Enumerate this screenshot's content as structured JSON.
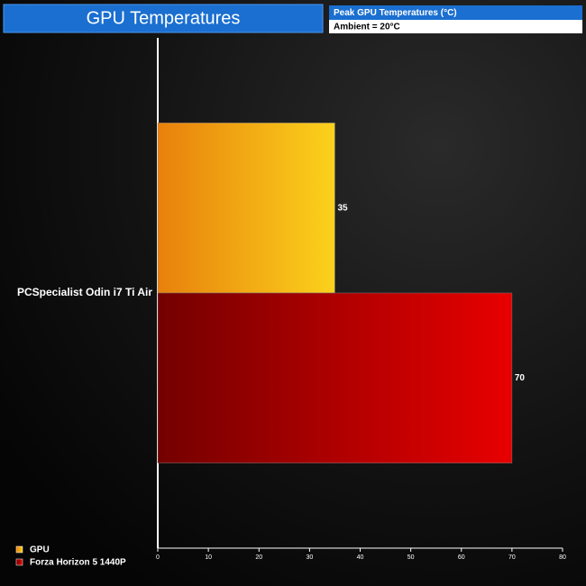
{
  "chart_data": {
    "type": "bar",
    "orientation": "horizontal",
    "title": "GPU Temperatures",
    "subtitle": "Peak GPU Temperatures (°C)",
    "annotation": "Ambient = 20°C",
    "categories": [
      "PCSpecialist Odin i7 Ti Air"
    ],
    "series": [
      {
        "name": "GPU",
        "color": "#fbd21c",
        "values": [
          35
        ]
      },
      {
        "name": "Forza Horizon 5 1440P",
        "color": "#e80000",
        "values": [
          70
        ]
      }
    ],
    "xlim": [
      0,
      80
    ],
    "xticks": [
      0,
      10,
      20,
      30,
      40,
      50,
      60,
      70,
      80
    ],
    "grid": false
  }
}
